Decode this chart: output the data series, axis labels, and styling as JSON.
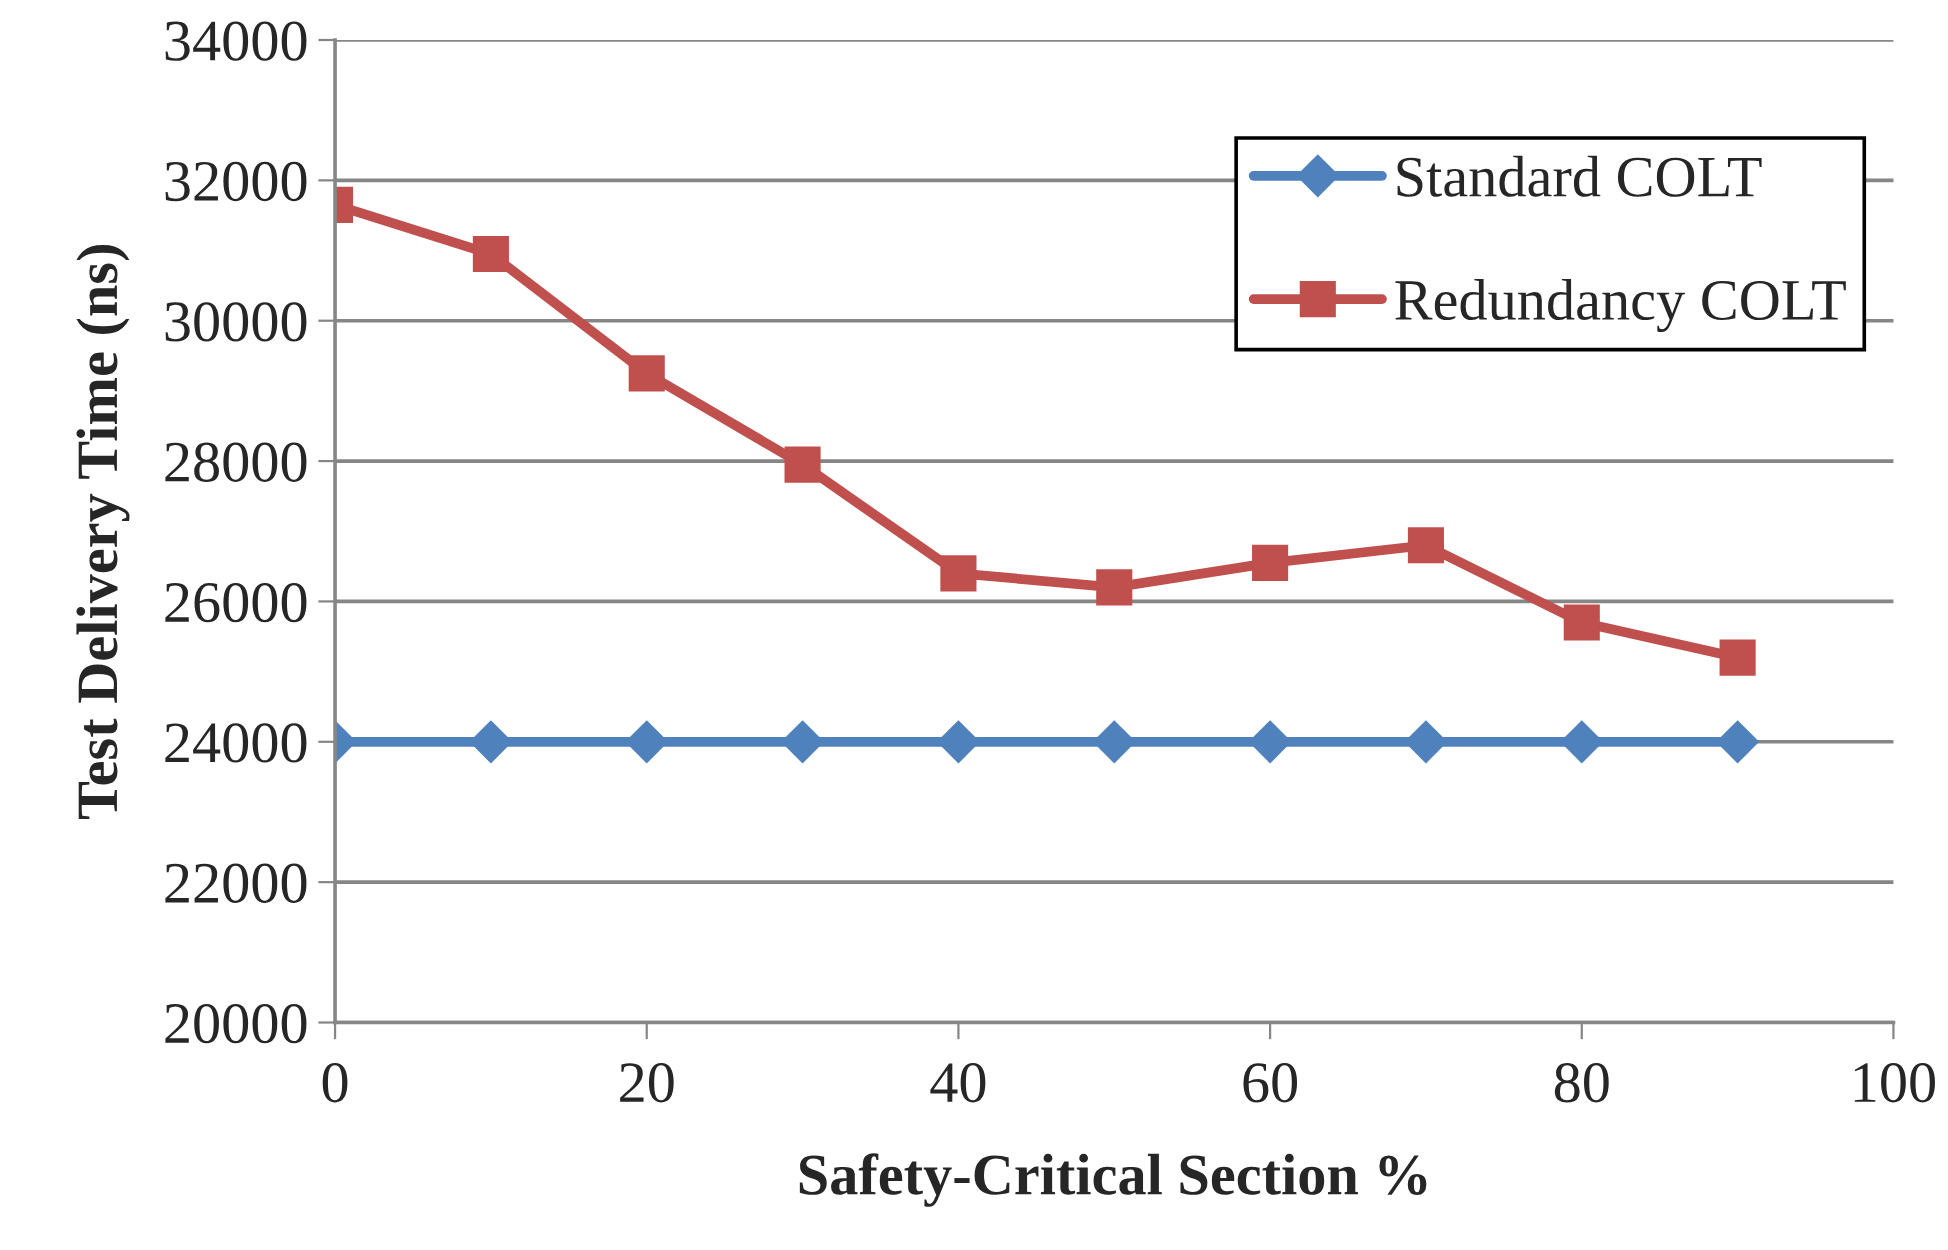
{
  "chart_data": {
    "type": "line",
    "xlabel": "Safety-Critical Section %",
    "ylabel": "Test Delivery Time (ns)",
    "x": [
      0,
      10,
      20,
      30,
      40,
      50,
      60,
      70,
      80,
      90
    ],
    "series": [
      {
        "name": "Standard COLT",
        "color": "#4f81bd",
        "marker": "diamond",
        "values": [
          24000,
          24000,
          24000,
          24000,
          24000,
          24000,
          24000,
          24000,
          24000,
          24000
        ]
      },
      {
        "name": "Redundancy COLT",
        "color": "#c0504d",
        "marker": "square",
        "values": [
          31650,
          30950,
          29250,
          27950,
          26400,
          26200,
          26550,
          26800,
          25700,
          25200
        ]
      }
    ],
    "xlim": [
      0,
      100
    ],
    "xticks": [
      0,
      20,
      40,
      60,
      80,
      100
    ],
    "ylim": [
      20000,
      34000
    ],
    "yticks": [
      20000,
      22000,
      24000,
      26000,
      28000,
      30000,
      32000,
      34000
    ],
    "grid": "y",
    "legend": "top right",
    "line_style": "solid"
  }
}
